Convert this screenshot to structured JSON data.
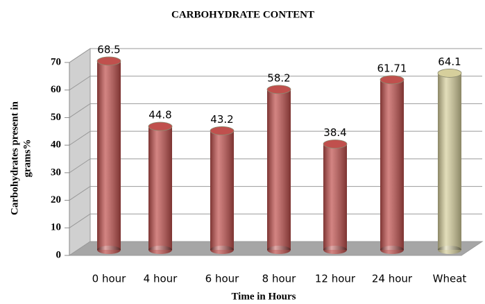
{
  "chart_data": {
    "type": "bar",
    "title": "CARBOHYDRATE CONTENT",
    "xlabel": "Time in Hours",
    "ylabel": [
      "Carbohydrates present in",
      "grams%"
    ],
    "categories": [
      "0 hour",
      "4 hour",
      "6 hour",
      "8 hour",
      "12 hour",
      "24 hour",
      "Wheat"
    ],
    "values": [
      68.5,
      44.8,
      43.2,
      58.2,
      38.4,
      61.71,
      64.1
    ],
    "colors": [
      "#c0504d",
      "#c0504d",
      "#c0504d",
      "#c0504d",
      "#c0504d",
      "#c0504d",
      "#d6cf9c"
    ],
    "ylim": [
      0,
      70
    ],
    "yticks": [
      0,
      10,
      20,
      30,
      40,
      50,
      60,
      70
    ],
    "grid": true
  }
}
